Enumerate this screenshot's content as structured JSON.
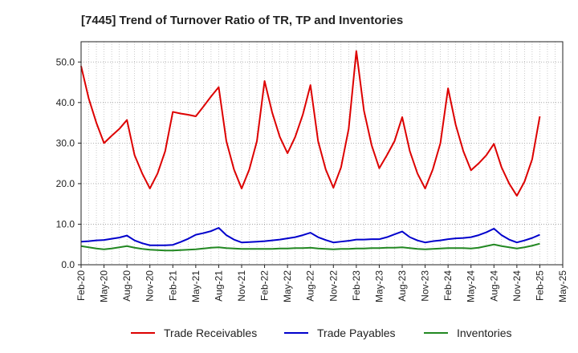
{
  "chart_data": {
    "type": "line",
    "title": "[7445]  Trend of Turnover Ratio of TR, TP and Inventories",
    "xlabel": "",
    "ylabel": "",
    "ylim": [
      0,
      55
    ],
    "yticks": [
      0,
      10,
      20,
      30,
      40,
      50
    ],
    "ytick_labels": [
      "0.0",
      "10.0",
      "20.0",
      "30.0",
      "40.0",
      "50.0"
    ],
    "x_tick_labels": [
      "Feb-20",
      "May-20",
      "Aug-20",
      "Nov-20",
      "Feb-21",
      "May-21",
      "Aug-21",
      "Nov-21",
      "Feb-22",
      "May-22",
      "Aug-22",
      "Nov-22",
      "Feb-23",
      "May-23",
      "Aug-23",
      "Nov-23",
      "Feb-24",
      "May-24",
      "Aug-24",
      "Nov-24",
      "Feb-25",
      "May-25"
    ],
    "x_start": "Feb-20",
    "x_end": "May-25",
    "grid": true,
    "legend_position": "bottom",
    "series": [
      {
        "name": "Trade Receivables",
        "color": "#dd0000",
        "values": [
          49.0,
          41.0,
          35.0,
          30.0,
          31.8,
          33.5,
          35.7,
          27.0,
          22.5,
          18.8,
          22.5,
          28.0,
          37.7,
          37.3,
          37.0,
          36.6,
          39.0,
          41.5,
          43.8,
          30.5,
          23.5,
          18.8,
          23.5,
          30.5,
          45.3,
          37.5,
          31.5,
          27.5,
          31.5,
          37.0,
          44.3,
          30.5,
          23.5,
          19.0,
          24.0,
          33.5,
          52.7,
          38.0,
          29.5,
          23.8,
          27.0,
          30.5,
          36.4,
          28.0,
          22.5,
          18.8,
          23.5,
          30.0,
          43.5,
          34.5,
          28.0,
          23.3,
          25.0,
          27.0,
          29.8,
          24.0,
          20.0,
          17.0,
          20.5,
          26.0,
          36.6
        ]
      },
      {
        "name": "Trade Payables",
        "color": "#0000cc",
        "values": [
          5.7,
          5.8,
          6.0,
          6.1,
          6.4,
          6.7,
          7.2,
          6.0,
          5.3,
          4.8,
          4.8,
          4.8,
          4.9,
          5.6,
          6.4,
          7.4,
          7.8,
          8.3,
          9.1,
          7.3,
          6.2,
          5.5,
          5.6,
          5.7,
          5.8,
          6.0,
          6.2,
          6.5,
          6.8,
          7.3,
          7.9,
          6.8,
          6.1,
          5.5,
          5.7,
          5.9,
          6.2,
          6.2,
          6.3,
          6.3,
          6.8,
          7.5,
          8.2,
          6.8,
          6.0,
          5.5,
          5.8,
          6.0,
          6.3,
          6.5,
          6.6,
          6.8,
          7.3,
          8.0,
          8.9,
          7.3,
          6.2,
          5.5,
          6.0,
          6.6,
          7.4
        ]
      },
      {
        "name": "Inventories",
        "color": "#228822",
        "values": [
          4.6,
          4.3,
          4.0,
          3.8,
          4.0,
          4.3,
          4.6,
          4.2,
          3.9,
          3.7,
          3.6,
          3.5,
          3.5,
          3.6,
          3.7,
          3.8,
          4.0,
          4.2,
          4.3,
          4.1,
          4.0,
          3.9,
          3.9,
          3.9,
          3.9,
          3.9,
          4.0,
          4.0,
          4.1,
          4.1,
          4.2,
          4.0,
          3.9,
          3.8,
          3.9,
          3.9,
          4.0,
          4.0,
          4.1,
          4.1,
          4.2,
          4.2,
          4.3,
          4.1,
          3.9,
          3.8,
          3.9,
          4.0,
          4.1,
          4.1,
          4.1,
          4.0,
          4.2,
          4.6,
          5.0,
          4.6,
          4.3,
          4.0,
          4.3,
          4.7,
          5.2
        ]
      }
    ]
  }
}
